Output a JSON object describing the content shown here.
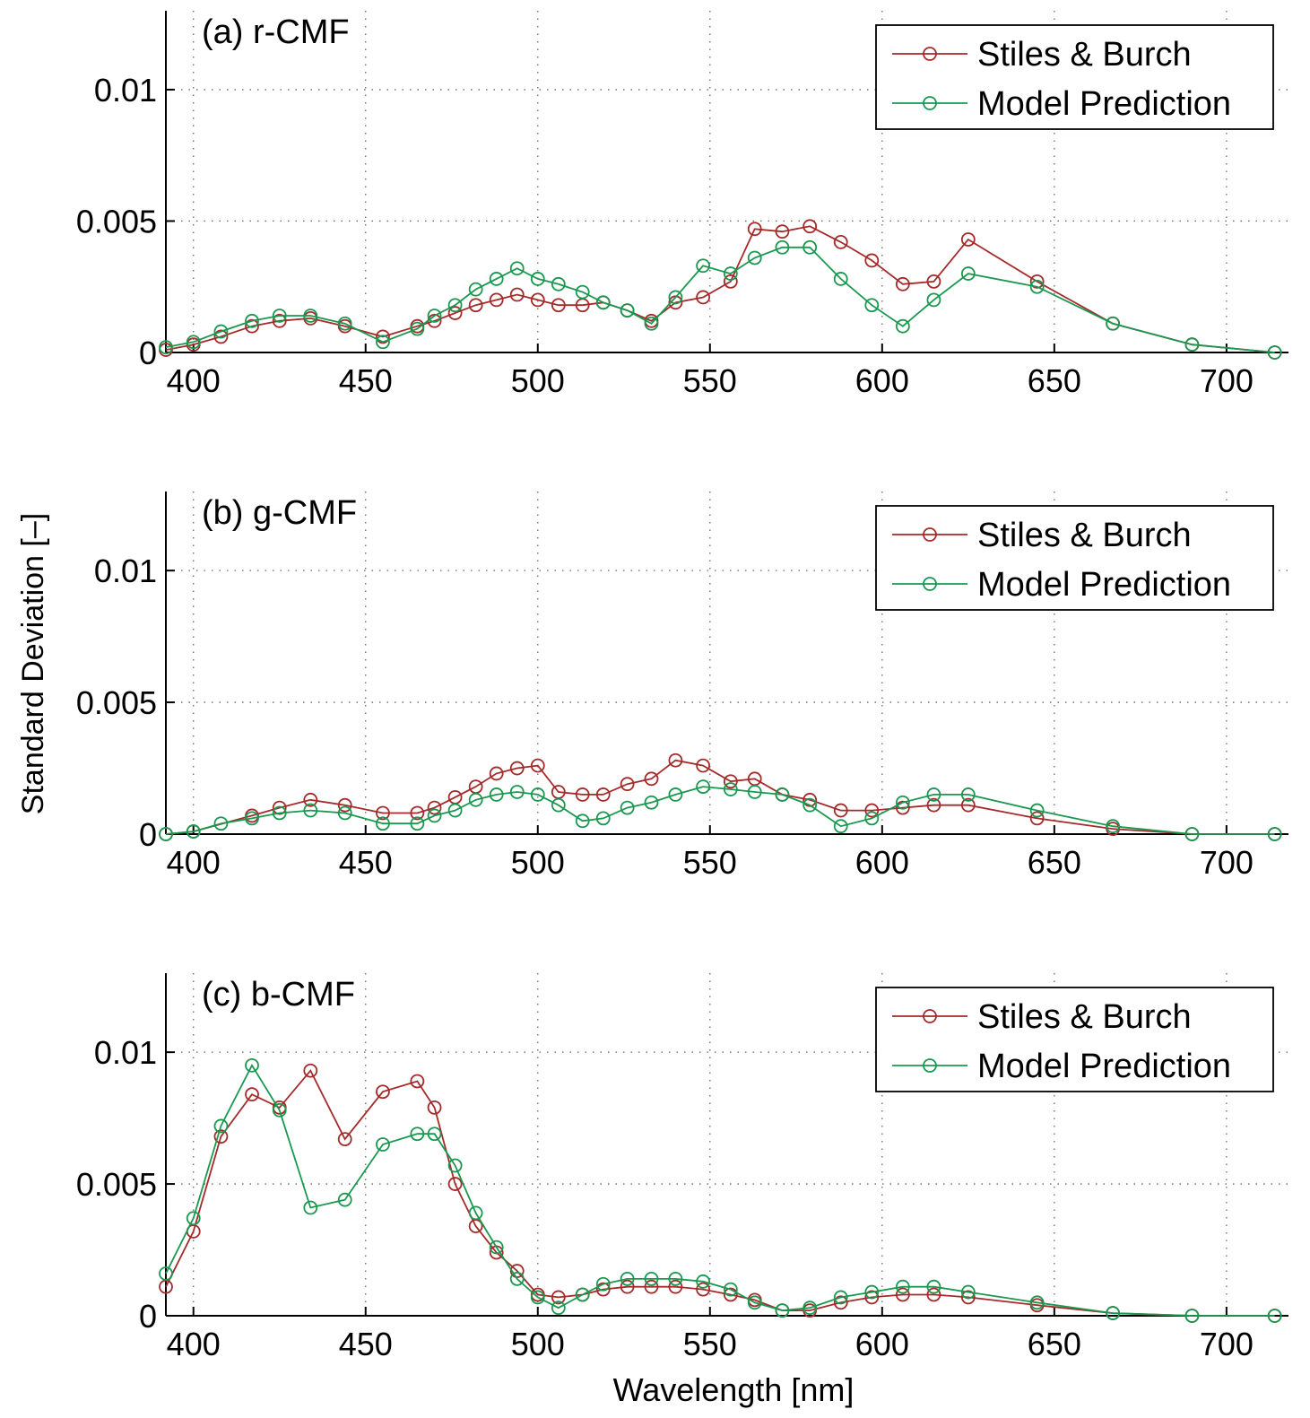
{
  "figure": {
    "ylabel": "Standard Deviation [–]",
    "xlabel": "Wavelength [nm]",
    "colors": {
      "stiles": "#a52a2a",
      "model": "#1a9850"
    }
  },
  "chart_data": [
    {
      "type": "line",
      "title": "(a) r-CMF",
      "xlim": [
        392,
        718
      ],
      "ylim": [
        0,
        0.013
      ],
      "xticks": [
        "400",
        "450",
        "500",
        "550",
        "600",
        "650",
        "700"
      ],
      "yticks": [
        "0",
        "0.005",
        "0.01"
      ],
      "grid": true,
      "legend_position": "top-right",
      "series": [
        {
          "name": "Stiles & Burch",
          "color": "#a52a2a",
          "x": [
            392,
            400,
            408,
            417,
            425,
            434,
            444,
            455,
            465,
            470,
            476,
            482,
            488,
            494,
            500,
            506,
            513,
            519,
            526,
            533,
            540,
            548,
            556,
            563,
            571,
            579,
            588,
            597,
            606,
            615,
            625,
            645,
            667,
            690,
            714
          ],
          "y": [
            0.0001,
            0.0003,
            0.0006,
            0.001,
            0.0012,
            0.0013,
            0.001,
            0.0006,
            0.001,
            0.0012,
            0.0015,
            0.0018,
            0.002,
            0.0022,
            0.002,
            0.0018,
            0.0018,
            0.0019,
            0.0016,
            0.0012,
            0.0019,
            0.0021,
            0.0027,
            0.0047,
            0.0046,
            0.0048,
            0.0042,
            0.0035,
            0.0026,
            0.0027,
            0.0043,
            0.0027,
            0.0011,
            0.0003,
            0.0
          ]
        },
        {
          "name": "Model Prediction",
          "color": "#1a9850",
          "x": [
            392,
            400,
            408,
            417,
            425,
            434,
            444,
            455,
            465,
            470,
            476,
            482,
            488,
            494,
            500,
            506,
            513,
            519,
            526,
            533,
            540,
            548,
            556,
            563,
            571,
            579,
            588,
            597,
            606,
            615,
            625,
            645,
            667,
            690,
            714
          ],
          "y": [
            0.0002,
            0.0004,
            0.0008,
            0.0012,
            0.0014,
            0.0014,
            0.0011,
            0.0004,
            0.0009,
            0.0014,
            0.0018,
            0.0024,
            0.0028,
            0.0032,
            0.0028,
            0.0026,
            0.0023,
            0.0019,
            0.0016,
            0.0011,
            0.0021,
            0.0033,
            0.003,
            0.0036,
            0.004,
            0.004,
            0.0028,
            0.0018,
            0.001,
            0.002,
            0.003,
            0.0025,
            0.0011,
            0.0003,
            0.0
          ]
        }
      ]
    },
    {
      "type": "line",
      "title": "(b) g-CMF",
      "xlim": [
        392,
        718
      ],
      "ylim": [
        0,
        0.013
      ],
      "xticks": [
        "400",
        "450",
        "500",
        "550",
        "600",
        "650",
        "700"
      ],
      "yticks": [
        "0",
        "0.005",
        "0.01"
      ],
      "grid": true,
      "legend_position": "top-right",
      "series": [
        {
          "name": "Stiles & Burch",
          "color": "#a52a2a",
          "x": [
            392,
            400,
            417,
            425,
            434,
            444,
            455,
            465,
            470,
            476,
            482,
            488,
            494,
            500,
            506,
            513,
            519,
            526,
            533,
            540,
            548,
            556,
            563,
            571,
            579,
            588,
            597,
            606,
            615,
            625,
            645,
            667,
            690,
            714
          ],
          "y": [
            0.0,
            0.0001,
            0.0007,
            0.001,
            0.0013,
            0.0011,
            0.0008,
            0.0008,
            0.001,
            0.0014,
            0.0018,
            0.0023,
            0.0025,
            0.0026,
            0.0016,
            0.0015,
            0.0015,
            0.0019,
            0.0021,
            0.0028,
            0.0026,
            0.002,
            0.0021,
            0.0015,
            0.0013,
            0.0009,
            0.0009,
            0.001,
            0.0011,
            0.0011,
            0.0006,
            0.0002,
            0.0,
            0.0
          ]
        },
        {
          "name": "Model Prediction",
          "color": "#1a9850",
          "x": [
            392,
            400,
            408,
            417,
            425,
            434,
            444,
            455,
            465,
            470,
            476,
            482,
            488,
            494,
            500,
            506,
            513,
            519,
            526,
            533,
            540,
            548,
            556,
            563,
            571,
            579,
            588,
            597,
            606,
            615,
            625,
            645,
            667,
            690,
            714
          ],
          "y": [
            0.0,
            0.0001,
            0.0004,
            0.0006,
            0.0008,
            0.0009,
            0.0008,
            0.0004,
            0.0004,
            0.0007,
            0.0009,
            0.0013,
            0.0015,
            0.0016,
            0.0015,
            0.0011,
            0.0005,
            0.0006,
            0.001,
            0.0012,
            0.0015,
            0.0018,
            0.0017,
            0.0016,
            0.0015,
            0.0011,
            0.0003,
            0.0006,
            0.0012,
            0.0015,
            0.0015,
            0.0009,
            0.0003,
            0.0,
            0.0
          ]
        }
      ]
    },
    {
      "type": "line",
      "title": "(c) b-CMF",
      "xlim": [
        392,
        718
      ],
      "ylim": [
        0,
        0.013
      ],
      "xticks": [
        "400",
        "450",
        "500",
        "550",
        "600",
        "650",
        "700"
      ],
      "yticks": [
        "0",
        "0.005",
        "0.01"
      ],
      "grid": true,
      "legend_position": "top-right",
      "series": [
        {
          "name": "Stiles & Burch",
          "color": "#a52a2a",
          "x": [
            392,
            400,
            408,
            417,
            425,
            434,
            444,
            455,
            465,
            470,
            476,
            482,
            488,
            494,
            500,
            506,
            513,
            519,
            526,
            533,
            540,
            548,
            556,
            563,
            571,
            579,
            588,
            597,
            606,
            615,
            625,
            645,
            667,
            690,
            714
          ],
          "y": [
            0.0011,
            0.0032,
            0.0068,
            0.0084,
            0.0079,
            0.0093,
            0.0067,
            0.0085,
            0.0089,
            0.0079,
            0.005,
            0.0034,
            0.0024,
            0.0017,
            0.0008,
            0.0007,
            0.0008,
            0.001,
            0.0011,
            0.0011,
            0.0011,
            0.001,
            0.0008,
            0.0006,
            0.0002,
            0.0002,
            0.0005,
            0.0007,
            0.0008,
            0.0008,
            0.0007,
            0.0004,
            0.0001,
            0.0,
            0.0
          ]
        },
        {
          "name": "Model Prediction",
          "color": "#1a9850",
          "x": [
            392,
            400,
            408,
            417,
            425,
            434,
            444,
            455,
            465,
            470,
            476,
            482,
            488,
            494,
            500,
            506,
            513,
            519,
            526,
            533,
            540,
            548,
            556,
            563,
            571,
            579,
            588,
            597,
            606,
            615,
            625,
            645,
            667,
            690,
            714
          ],
          "y": [
            0.0016,
            0.0037,
            0.0072,
            0.0095,
            0.0078,
            0.0041,
            0.0044,
            0.0065,
            0.0069,
            0.0069,
            0.0057,
            0.0039,
            0.0026,
            0.0014,
            0.0007,
            0.0003,
            0.0008,
            0.0012,
            0.0014,
            0.0014,
            0.0014,
            0.0013,
            0.001,
            0.0005,
            0.0002,
            0.0003,
            0.0007,
            0.0009,
            0.0011,
            0.0011,
            0.0009,
            0.0005,
            0.0001,
            0.0,
            0.0
          ]
        }
      ]
    }
  ]
}
